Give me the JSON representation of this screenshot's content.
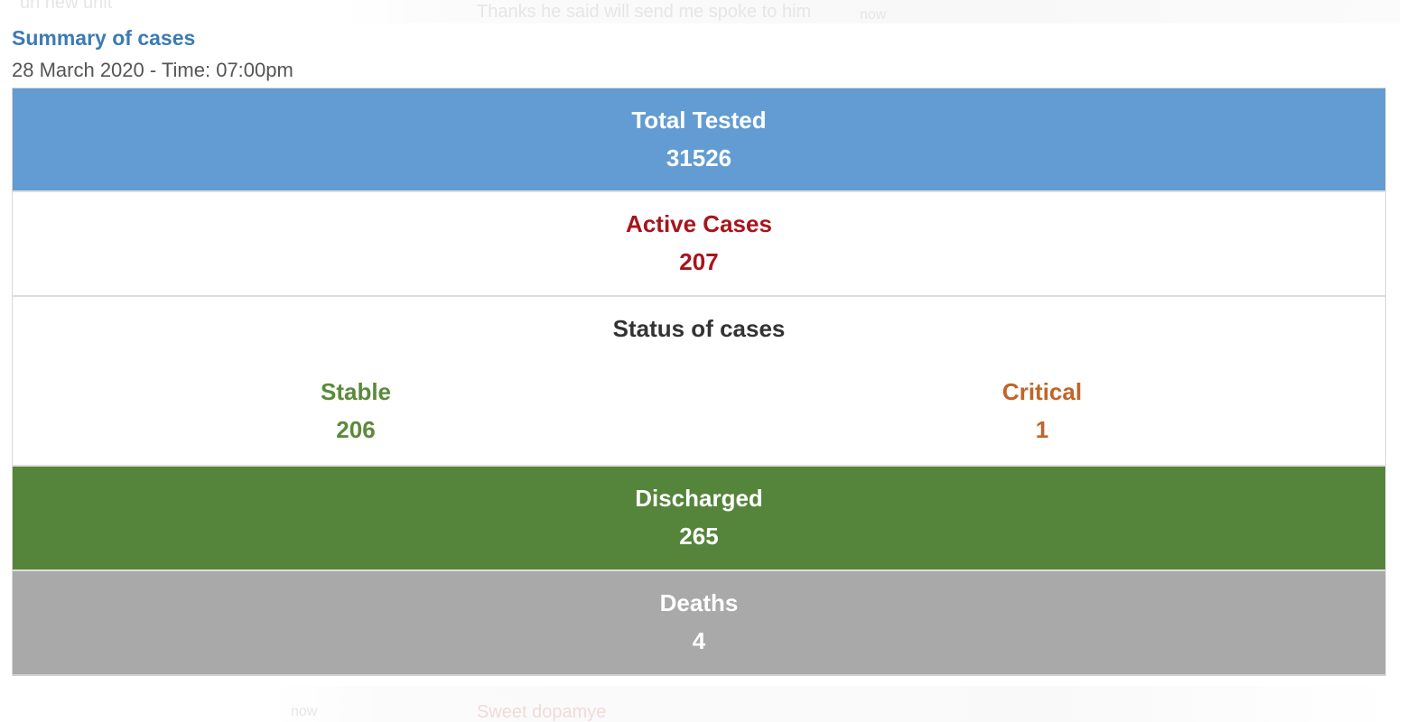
{
  "background": {
    "top_left": "un new unit",
    "top_message": "Thanks he said will send me spoke to him",
    "top_time": "now",
    "bottom_left": "now",
    "bottom_name": "Sweet dopamye"
  },
  "summary": {
    "title": "Summary of cases",
    "datetime": "28 March 2020 - Time: 07:00pm"
  },
  "total_tested": {
    "label": "Total Tested",
    "value": "31526"
  },
  "active_cases": {
    "label": "Active Cases",
    "value": "207"
  },
  "status": {
    "heading": "Status of cases",
    "stable": {
      "label": "Stable",
      "value": "206"
    },
    "critical": {
      "label": "Critical",
      "value": "1"
    }
  },
  "discharged": {
    "label": "Discharged",
    "value": "265"
  },
  "deaths": {
    "label": "Deaths",
    "value": "4"
  },
  "colors": {
    "title": "#3b7bb5",
    "tested_bg": "#629cd2",
    "active_text": "#a8141c",
    "stable_text": "#5a8a3a",
    "critical_text": "#c06428",
    "discharged_bg": "#55843b",
    "deaths_bg": "#a9a9a9"
  }
}
